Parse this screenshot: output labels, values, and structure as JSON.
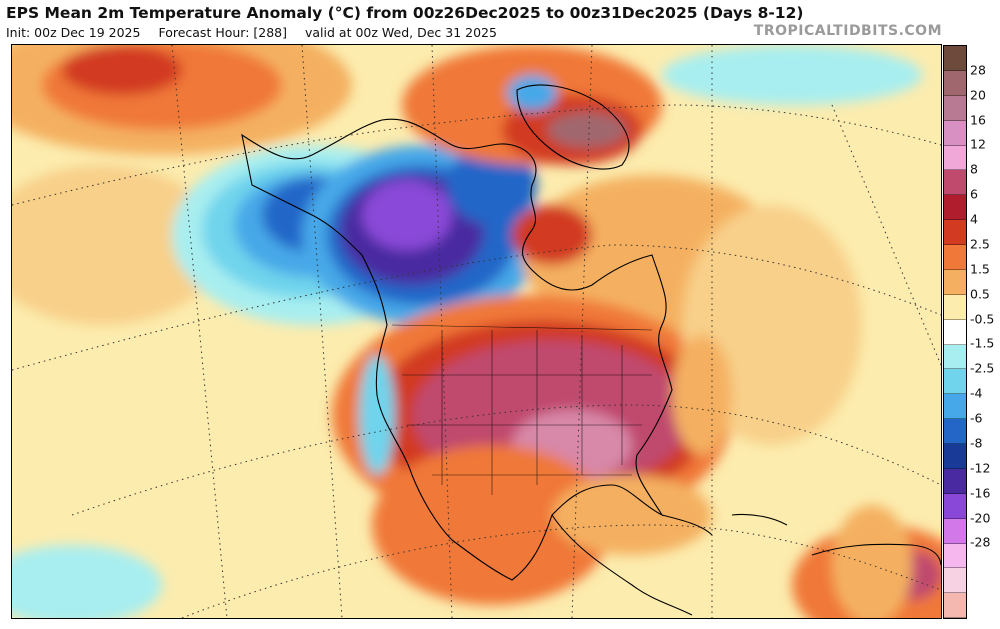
{
  "header": {
    "title": "EPS Mean 2m Temperature Anomaly (°C) from 00z26Dec2025 to 00z31Dec2025 (Days 8-12)",
    "init": "Init: 00z Dec 19 2025",
    "forecast_hour": "Forecast Hour: [288]",
    "valid": "valid at 00z Wed, Dec 31 2025"
  },
  "watermark": "TROPICALTIDBITS.COM",
  "colorbar": {
    "labels": [
      "28",
      "20",
      "16",
      "12",
      "8",
      "6",
      "4",
      "2.5",
      "1.5",
      "0.5",
      "-0.5",
      "-1.5",
      "-2.5",
      "-4",
      "-6",
      "-8",
      "-12",
      "-16",
      "-20",
      "-28"
    ],
    "colors": [
      "#6e4a3c",
      "#a0686e",
      "#b87a92",
      "#d88fc2",
      "#f0a8d8",
      "#c04a6e",
      "#b01e2e",
      "#d23a22",
      "#f07838",
      "#f4b060",
      "#fcecae",
      "#ffffff",
      "#a8eef0",
      "#70d4ec",
      "#46a8e8",
      "#2466c8",
      "#1a3a98",
      "#4a2aa0",
      "#8a48d8",
      "#d278e8",
      "#f6b6ee",
      "#f6d2e2",
      "#f4b8b0"
    ]
  },
  "map": {
    "region": "North America",
    "palette": {
      "ocean_neutral": "#fcecae",
      "warm_light": "#f4b060",
      "warm_mid": "#f07838",
      "warm_strong": "#d23a22",
      "warm_hot": "#c04a6e",
      "cold_light": "#a8eef0",
      "cold_mid": "#46a8e8",
      "cold_strong": "#2466c8",
      "cold_deep": "#4a2aa0",
      "cold_purple": "#8a48d8"
    }
  }
}
